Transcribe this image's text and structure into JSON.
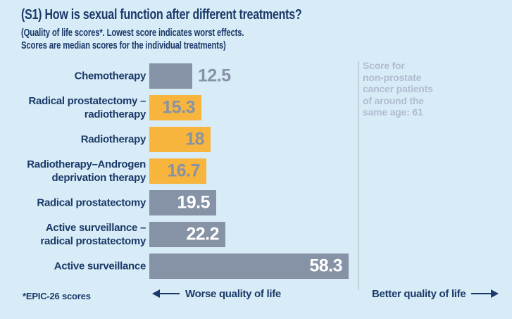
{
  "header": {
    "title": "(S1) How is sexual function after different treatments?",
    "subtitle": "(Quality of life scores*. Lowest score indicates worst effects.\nScores are median scores for the individual treatments)"
  },
  "chart_data": {
    "type": "bar",
    "orientation": "horizontal",
    "title": "(S1) How is sexual function after different treatments?",
    "categories": [
      "Chemotherapy",
      "Radical prostatectomy – radiotherapy",
      "Radiotherapy",
      "Radiotherapy–Androgen deprivation therapy",
      "Radical prostatectomy",
      "Active surveillance – radical prostatectomy",
      "Active surveillance"
    ],
    "category_display_lines": [
      "Chemotherapy",
      "Radical prostatectomy –\nradiotherapy",
      "Radiotherapy",
      "Radiotherapy–Androgen\ndeprivation therapy",
      "Radical prostatectomy",
      "Active surveillance –\nradical prostatectomy",
      "Active surveillance"
    ],
    "values": [
      12.5,
      15.3,
      18,
      16.7,
      19.5,
      22.2,
      58.3
    ],
    "value_labels": [
      "12.5",
      "15.3",
      "18",
      "16.7",
      "19.5",
      "22.2",
      "58.3"
    ],
    "bar_palette": [
      "gray",
      "orange",
      "orange",
      "orange",
      "gray",
      "gray",
      "gray"
    ],
    "value_label_placement": [
      "outside",
      "inside",
      "inside",
      "inside",
      "inside",
      "inside",
      "inside"
    ],
    "reference_line": {
      "value": 61,
      "note": "Score for\nnon-prostate\ncancer patients\nof around the\nsame age: 61"
    },
    "legend_position": "none",
    "grid": false
  },
  "axis_labels": {
    "worse": "Worse quality of life",
    "better": "Better quality of life"
  },
  "footnote": "*EPIC-26 scores",
  "icons": {
    "worse": "long-left-arrow",
    "better": "long-right-arrow"
  },
  "colors": {
    "background": "#d8ecf7",
    "navy_text": "#1b3a69",
    "bar_gray": "#8692a6",
    "bar_orange": "#f7b53d",
    "value_on_orange": "#8692a6",
    "value_on_gray": "#ffffff",
    "value_outside": "#8692a6",
    "reference_line": "#c5cfda",
    "reference_text": "#b1bbd0"
  }
}
